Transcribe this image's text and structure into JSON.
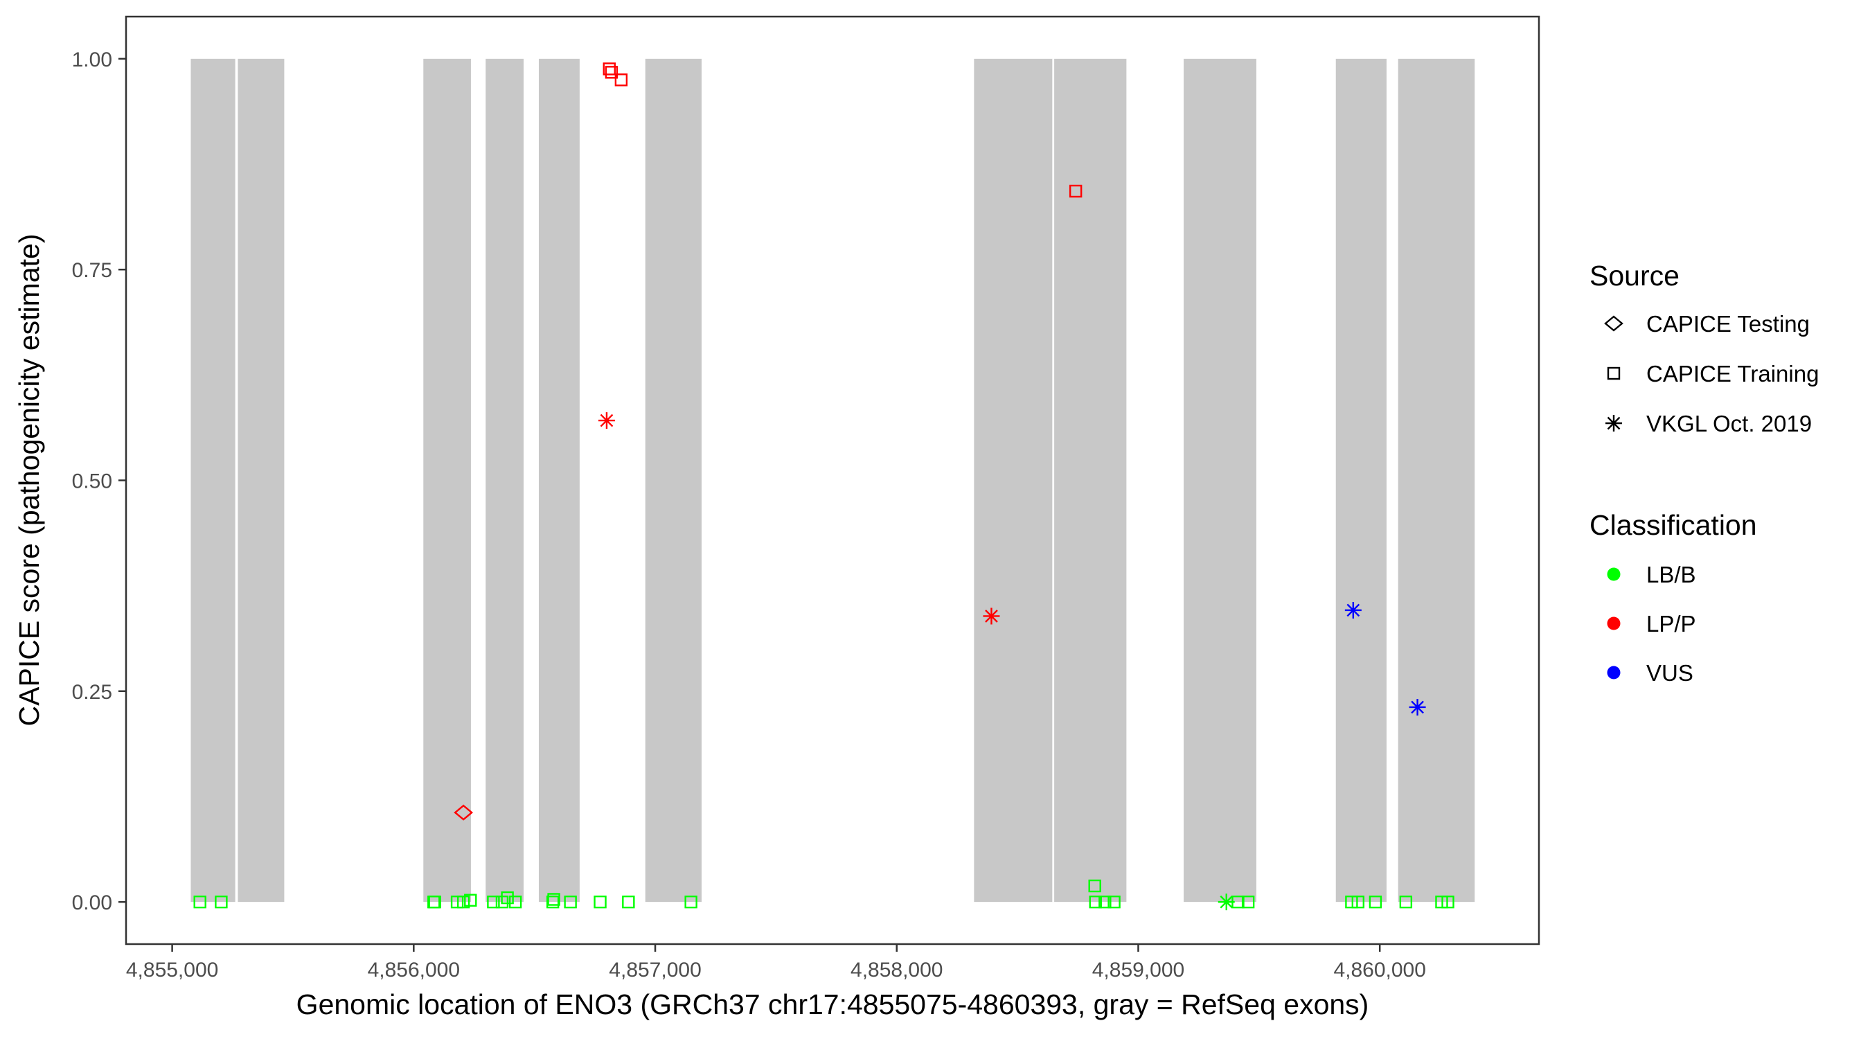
{
  "chart_data": {
    "type": "scatter",
    "xlabel": "Genomic location of ENO3 (GRCh37 chr17:4855075-4860393, gray = RefSeq exons)",
    "ylabel": "CAPICE score (pathogenicity estimate)",
    "xlim": [
      4854809,
      4860659
    ],
    "ylim": [
      -0.05,
      1.05
    ],
    "grid": false,
    "x_ticks": [
      {
        "value": 4855000,
        "label": "4,855,000"
      },
      {
        "value": 4856000,
        "label": "4,856,000"
      },
      {
        "value": 4857000,
        "label": "4,857,000"
      },
      {
        "value": 4858000,
        "label": "4,858,000"
      },
      {
        "value": 4859000,
        "label": "4,859,000"
      },
      {
        "value": 4860000,
        "label": "4,860,000"
      }
    ],
    "y_ticks": [
      {
        "value": 0.0,
        "label": "0.00"
      },
      {
        "value": 0.25,
        "label": "0.25"
      },
      {
        "value": 0.5,
        "label": "0.50"
      },
      {
        "value": 0.75,
        "label": "0.75"
      },
      {
        "value": 1.0,
        "label": "1.00"
      }
    ],
    "exons": [
      [
        4855077,
        4855261
      ],
      [
        4855272,
        4855464
      ],
      [
        4856040,
        4856237
      ],
      [
        4856298,
        4856455
      ],
      [
        4856518,
        4856687
      ],
      [
        4856959,
        4857192
      ],
      [
        4858320,
        4858644
      ],
      [
        4858652,
        4858951
      ],
      [
        4859188,
        4859489
      ],
      [
        4859818,
        4860028
      ],
      [
        4860076,
        4860393
      ]
    ],
    "exon_color": "#c8c8c8",
    "legend": {
      "placement": "right",
      "source_title": "Source",
      "source_items": [
        {
          "label": "CAPICE Testing",
          "shape": "diamond"
        },
        {
          "label": "CAPICE Training",
          "shape": "square"
        },
        {
          "label": "VKGL Oct. 2019",
          "shape": "asterisk"
        }
      ],
      "class_title": "Classification",
      "class_items": [
        {
          "label": "LB/B",
          "color": "#00ff00"
        },
        {
          "label": "LP/P",
          "color": "#ff0000"
        },
        {
          "label": "VUS",
          "color": "#0000ff"
        }
      ]
    },
    "points": [
      {
        "x": 4856810,
        "y": 0.988,
        "source": "square",
        "cls": "LP/P"
      },
      {
        "x": 4856819,
        "y": 0.984,
        "source": "square",
        "cls": "LP/P"
      },
      {
        "x": 4856859,
        "y": 0.975,
        "source": "square",
        "cls": "LP/P"
      },
      {
        "x": 4858741,
        "y": 0.843,
        "source": "square",
        "cls": "LP/P"
      },
      {
        "x": 4856799,
        "y": 0.571,
        "source": "asterisk",
        "cls": "LP/P"
      },
      {
        "x": 4858392,
        "y": 0.339,
        "source": "asterisk",
        "cls": "LP/P"
      },
      {
        "x": 4856206,
        "y": 0.106,
        "source": "diamond",
        "cls": "LP/P"
      },
      {
        "x": 4859890,
        "y": 0.346,
        "source": "asterisk",
        "cls": "VUS"
      },
      {
        "x": 4860156,
        "y": 0.231,
        "source": "asterisk",
        "cls": "VUS"
      },
      {
        "x": 4859365,
        "y": 0.0,
        "source": "asterisk",
        "cls": "LB/B"
      },
      {
        "x": 4855115,
        "y": 0.0,
        "source": "square",
        "cls": "LB/B"
      },
      {
        "x": 4855203,
        "y": 0.0,
        "source": "square",
        "cls": "LB/B"
      },
      {
        "x": 4856083,
        "y": 0.0,
        "source": "square",
        "cls": "LB/B"
      },
      {
        "x": 4856087,
        "y": 0.0,
        "source": "square",
        "cls": "LB/B"
      },
      {
        "x": 4856180,
        "y": 0.0,
        "source": "square",
        "cls": "LB/B"
      },
      {
        "x": 4856206,
        "y": 0.0,
        "source": "square",
        "cls": "LB/B"
      },
      {
        "x": 4856235,
        "y": 0.002,
        "source": "square",
        "cls": "LB/B"
      },
      {
        "x": 4856330,
        "y": 0.0,
        "source": "square",
        "cls": "LB/B"
      },
      {
        "x": 4856366,
        "y": 0.0,
        "source": "square",
        "cls": "LB/B"
      },
      {
        "x": 4856388,
        "y": 0.005,
        "source": "square",
        "cls": "LB/B"
      },
      {
        "x": 4856421,
        "y": 0.0,
        "source": "square",
        "cls": "LB/B"
      },
      {
        "x": 4856576,
        "y": 0.0,
        "source": "square",
        "cls": "LB/B"
      },
      {
        "x": 4856580,
        "y": 0.003,
        "source": "square",
        "cls": "LB/B"
      },
      {
        "x": 4856649,
        "y": 0.0,
        "source": "square",
        "cls": "LB/B"
      },
      {
        "x": 4856772,
        "y": 0.0,
        "source": "square",
        "cls": "LB/B"
      },
      {
        "x": 4856889,
        "y": 0.0,
        "source": "square",
        "cls": "LB/B"
      },
      {
        "x": 4857148,
        "y": 0.0,
        "source": "square",
        "cls": "LB/B"
      },
      {
        "x": 4858820,
        "y": 0.019,
        "source": "square",
        "cls": "LB/B"
      },
      {
        "x": 4858823,
        "y": 0.0,
        "source": "square",
        "cls": "LB/B"
      },
      {
        "x": 4858862,
        "y": 0.0,
        "source": "square",
        "cls": "LB/B"
      },
      {
        "x": 4858900,
        "y": 0.0,
        "source": "square",
        "cls": "LB/B"
      },
      {
        "x": 4859413,
        "y": 0.0,
        "source": "square",
        "cls": "LB/B"
      },
      {
        "x": 4859455,
        "y": 0.0,
        "source": "square",
        "cls": "LB/B"
      },
      {
        "x": 4859883,
        "y": 0.0,
        "source": "square",
        "cls": "LB/B"
      },
      {
        "x": 4859910,
        "y": 0.0,
        "source": "square",
        "cls": "LB/B"
      },
      {
        "x": 4859982,
        "y": 0.0,
        "source": "square",
        "cls": "LB/B"
      },
      {
        "x": 4860108,
        "y": 0.0,
        "source": "square",
        "cls": "LB/B"
      },
      {
        "x": 4860256,
        "y": 0.0,
        "source": "square",
        "cls": "LB/B"
      },
      {
        "x": 4860282,
        "y": 0.0,
        "source": "square",
        "cls": "LB/B"
      }
    ]
  }
}
